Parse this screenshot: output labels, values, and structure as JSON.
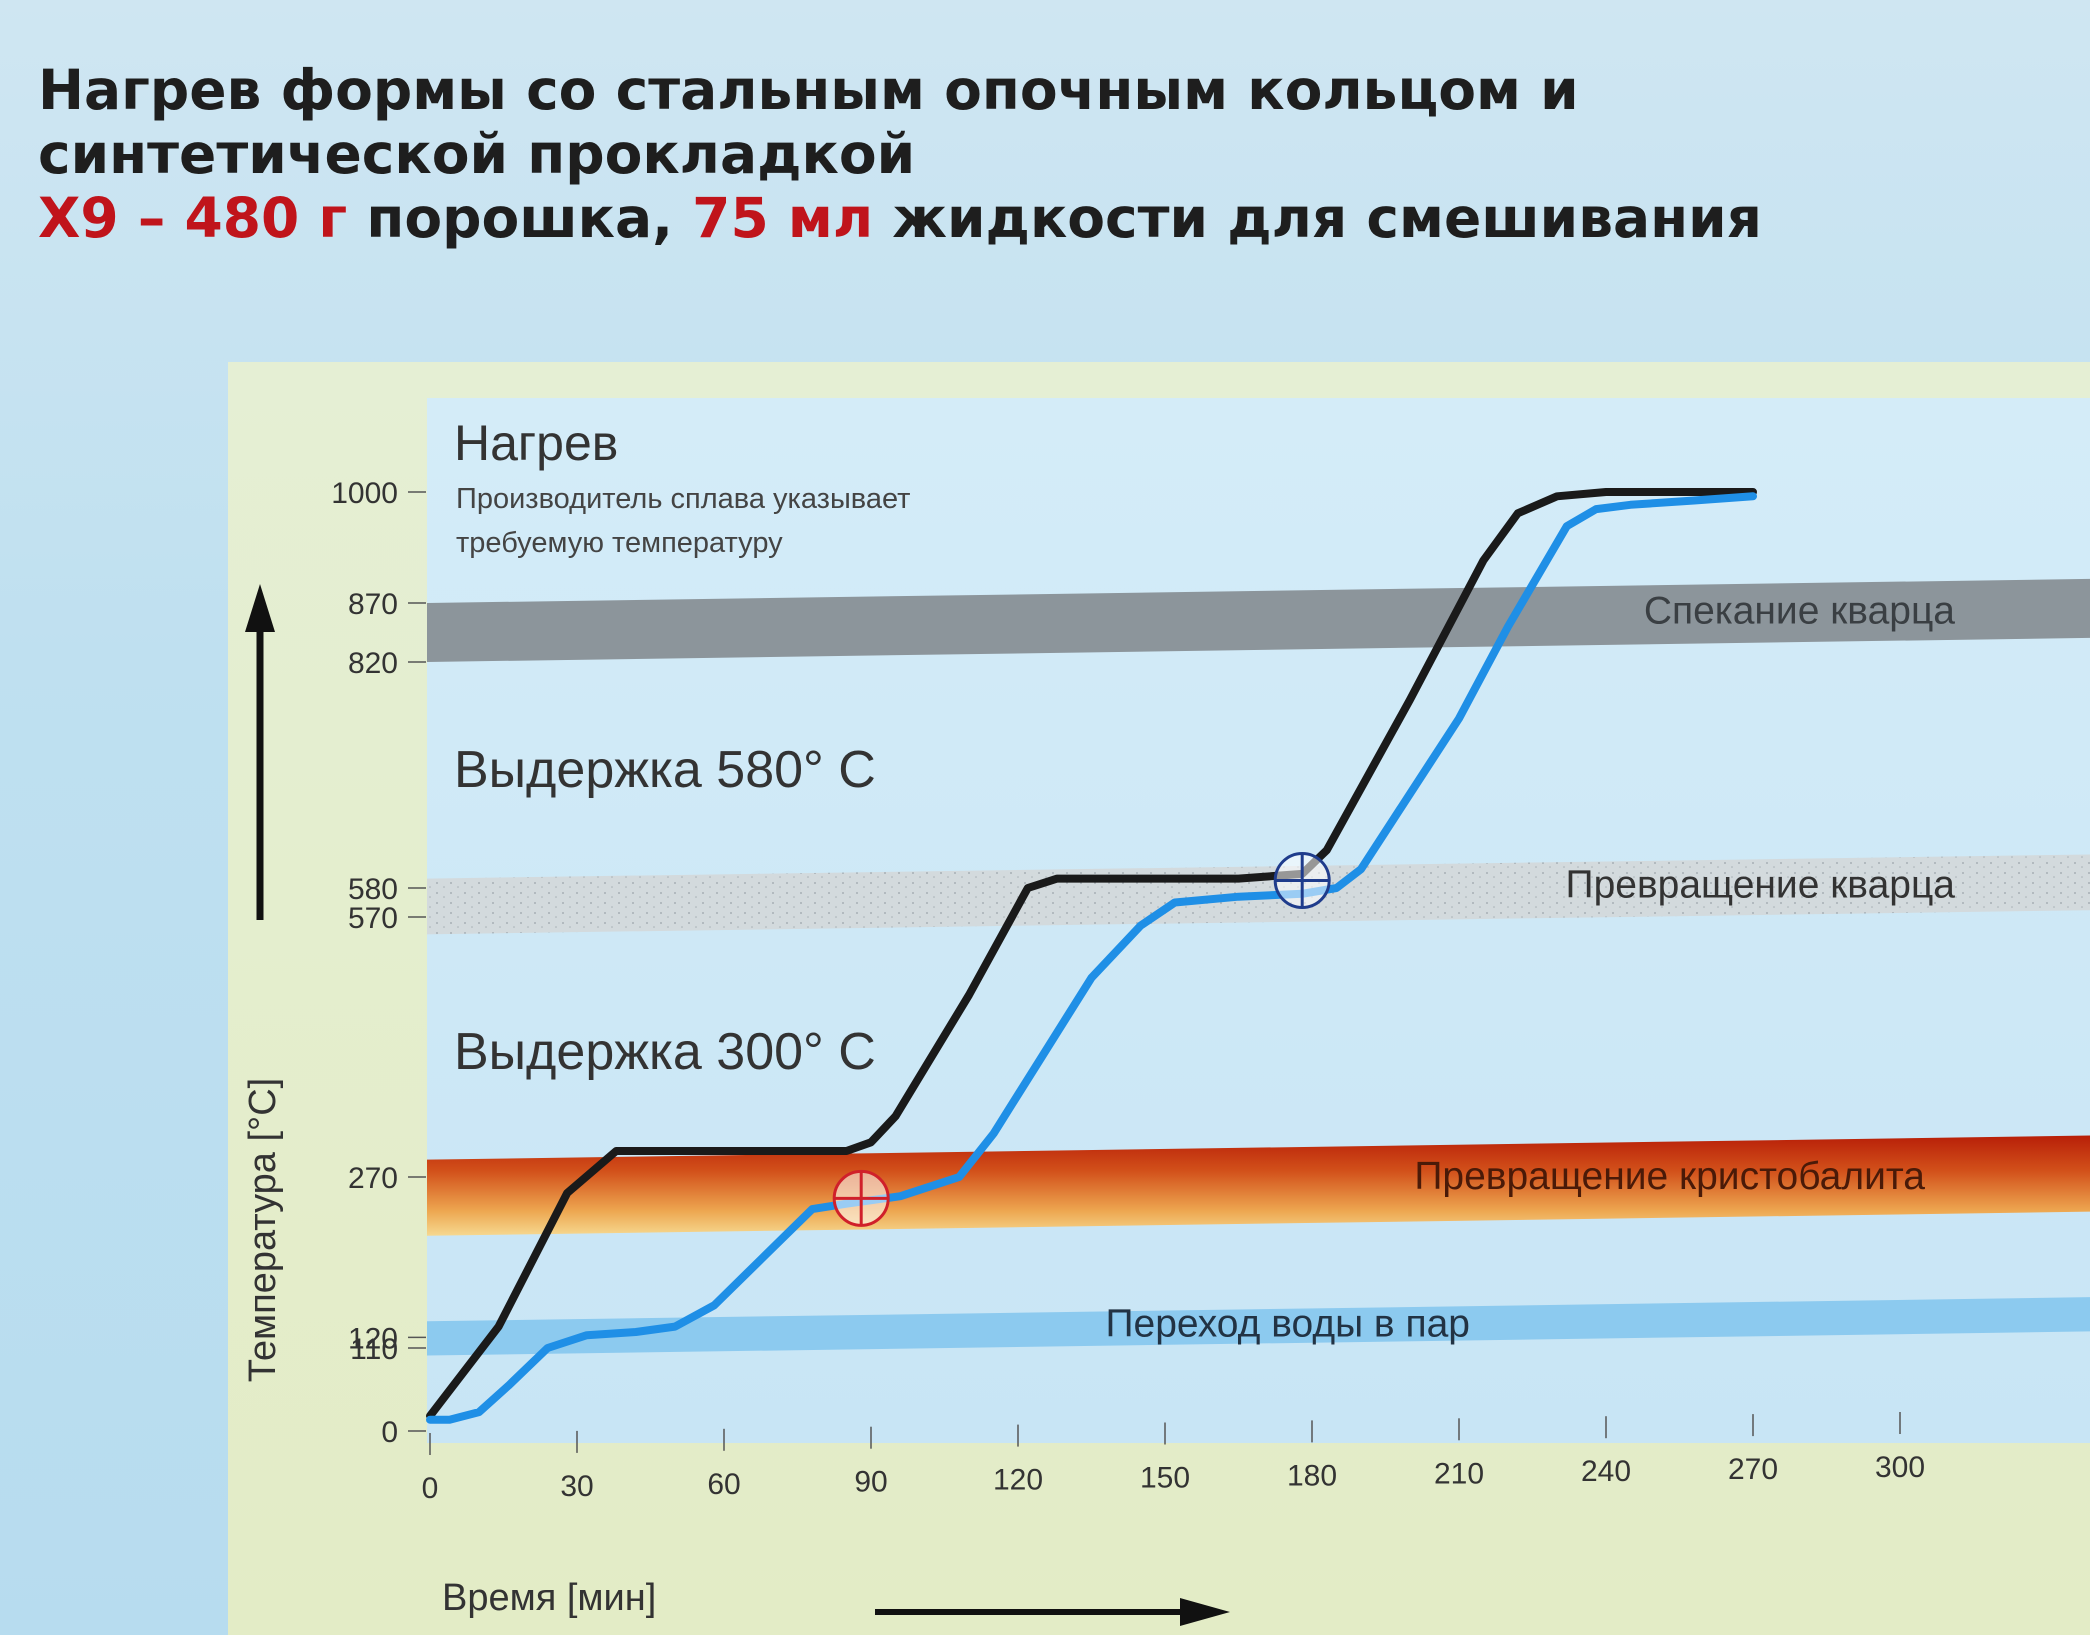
{
  "header": {
    "line1": "Нагрев формы со стальным опочным кольцом и",
    "line2": "синтетической прокладкой",
    "line3_red1": "X9 – 480 г",
    "line3_mid": " порошка, ",
    "line3_red2": "75 мл",
    "line3_end": " жидкости для смешивания"
  },
  "chart_data": {
    "type": "line",
    "xlabel": "Время [мин]",
    "ylabel": "Температура [°C]",
    "x_ticks": [
      0,
      30,
      60,
      90,
      120,
      150,
      180,
      210,
      240,
      270,
      300
    ],
    "y_ticks": [
      0,
      110,
      120,
      270,
      570,
      580,
      820,
      870,
      1000
    ],
    "xlim": [
      0,
      300
    ],
    "ylim": [
      0,
      1000
    ],
    "series": [
      {
        "color": "#1a1a1a",
        "x": [
          0,
          14,
          28,
          38,
          50,
          70,
          85,
          90,
          95,
          110,
          122,
          128,
          145,
          165,
          178,
          183,
          200,
          215,
          222,
          230,
          240,
          255,
          270
        ],
        "y": [
          20,
          130,
          255,
          300,
          300,
          300,
          300,
          310,
          340,
          480,
          580,
          590,
          590,
          590,
          595,
          620,
          780,
          920,
          975,
          995,
          1000,
          1000,
          1000
        ]
      },
      {
        "color": "#1f8fe6",
        "x": [
          0,
          4,
          10,
          16,
          24,
          32,
          42,
          50,
          58,
          68,
          78,
          85,
          96,
          108,
          115,
          125,
          135,
          145,
          152,
          165,
          178,
          185,
          190,
          200,
          210,
          220,
          232,
          238,
          245,
          258,
          270
        ],
        "y": [
          15,
          15,
          25,
          60,
          110,
          122,
          125,
          130,
          150,
          195,
          240,
          245,
          252,
          270,
          320,
          410,
          500,
          560,
          575,
          577,
          578,
          580,
          600,
          680,
          760,
          850,
          960,
          980,
          985,
          990,
          995
        ]
      }
    ],
    "bands": [
      {
        "label": "Спекание кварца",
        "range": [
          820,
          870
        ],
        "color": "#8c959b"
      },
      {
        "label": "Превращение кварца",
        "range": [
          550,
          590
        ],
        "color": "#d2dade"
      },
      {
        "label": "Превращение кристобалита",
        "range": [
          215,
          290
        ],
        "color": "#c23a10"
      },
      {
        "label": "Переход воды в пар",
        "range": [
          100,
          135
        ],
        "color": "#8ccaef"
      }
    ],
    "annotations": [
      {
        "text": "Нагрев",
        "kind": "heading"
      },
      {
        "text": "Производитель сплава указывает",
        "kind": "note"
      },
      {
        "text": "требуемую температуру",
        "kind": "note"
      },
      {
        "text": "Выдержка 580° C",
        "kind": "hold"
      },
      {
        "text": "Выдержка 300° C",
        "kind": "hold"
      }
    ],
    "markers": [
      {
        "x": 88,
        "y": 250,
        "color": "#d0202a"
      },
      {
        "x": 178,
        "y": 588,
        "color": "#1f3c8c"
      }
    ]
  }
}
